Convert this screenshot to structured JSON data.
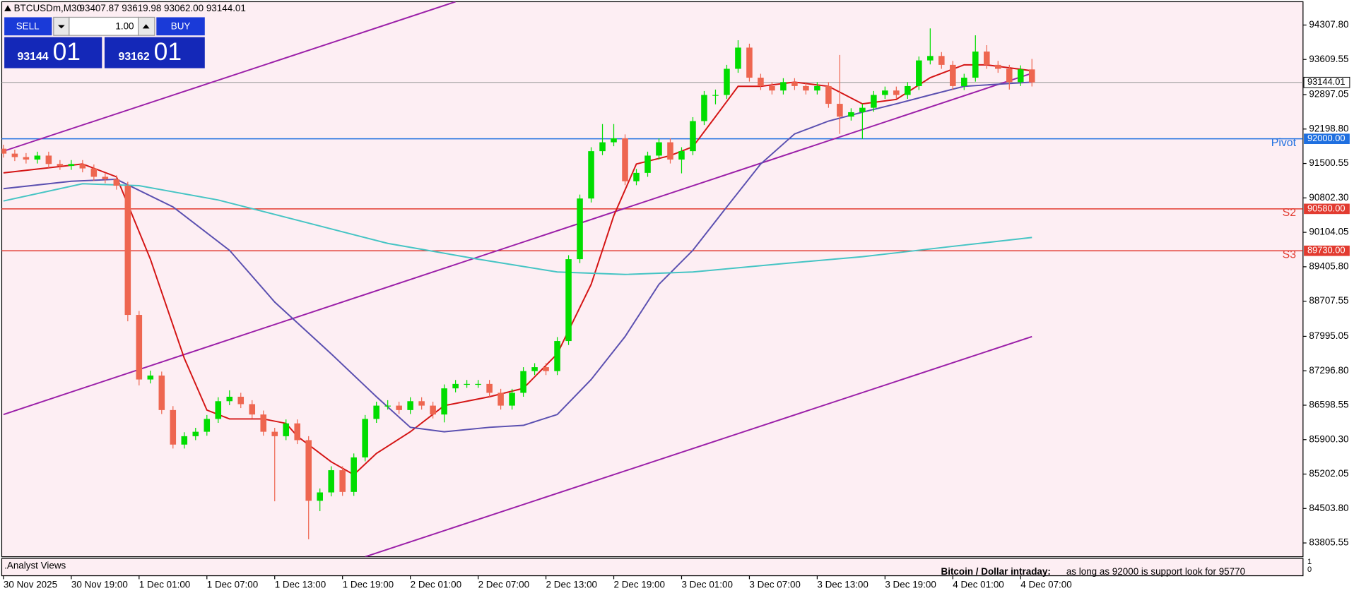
{
  "chart_data": {
    "type": "candlestick",
    "title": "BTCUSDm,M30",
    "ohlc_text": "93407.87 93619.98 93062.00 93144.01",
    "up_color": "#00dd00",
    "down_color": "#ee6650",
    "background": "#fdeef3",
    "ylim": [
      83525.5,
      94815.4
    ],
    "yticks": [
      {
        "value": 94307.8,
        "label": "94307.80"
      },
      {
        "value": 93609.55,
        "label": "93609.55"
      },
      {
        "value": 92897.05,
        "label": "92897.05"
      },
      {
        "value": 92198.8,
        "label": "92198.80"
      },
      {
        "value": 91500.55,
        "label": "91500.55"
      },
      {
        "value": 90802.3,
        "label": "90802.30"
      },
      {
        "value": 90104.05,
        "label": "90104.05"
      },
      {
        "value": 89405.8,
        "label": "89405.80"
      },
      {
        "value": 88707.55,
        "label": "88707.55"
      },
      {
        "value": 87995.05,
        "label": "87995.05"
      },
      {
        "value": 87296.8,
        "label": "87296.80"
      },
      {
        "value": 86598.55,
        "label": "86598.55"
      },
      {
        "value": 85900.3,
        "label": "85900.30"
      },
      {
        "value": 85202.05,
        "label": "85202.05"
      },
      {
        "value": 84503.8,
        "label": "84503.80"
      },
      {
        "value": 83805.55,
        "label": "83805.55"
      }
    ],
    "xticks": [
      {
        "value": 0,
        "label": "30 Nov 2025"
      },
      {
        "value": 6,
        "label": "30 Nov 19:00"
      },
      {
        "value": 12,
        "label": "1 Dec 01:00"
      },
      {
        "value": 18,
        "label": "1 Dec 07:00"
      },
      {
        "value": 24,
        "label": "1 Dec 13:00"
      },
      {
        "value": 30,
        "label": "1 Dec 19:00"
      },
      {
        "value": 36,
        "label": "2 Dec 01:00"
      },
      {
        "value": 42,
        "label": "2 Dec 07:00"
      },
      {
        "value": 48,
        "label": "2 Dec 13:00"
      },
      {
        "value": 54,
        "label": "2 Dec 19:00"
      },
      {
        "value": 60,
        "label": "3 Dec 01:00"
      },
      {
        "value": 66,
        "label": "3 Dec 07:00"
      },
      {
        "value": 72,
        "label": "3 Dec 13:00"
      },
      {
        "value": 78,
        "label": "3 Dec 19:00"
      },
      {
        "value": 84,
        "label": "4 Dec 01:00"
      },
      {
        "value": 90,
        "label": "4 Dec 07:00"
      }
    ],
    "open": [
      91800,
      91700,
      91630,
      91580,
      91660,
      91490,
      91450,
      91490,
      91400,
      91230,
      91180,
      91050,
      88430,
      87120,
      87200,
      86500,
      85800,
      85970,
      86060,
      86320,
      86680,
      86770,
      86620,
      86410,
      86060,
      85970,
      86230,
      85890,
      84660,
      84830,
      85280,
      84840,
      85540,
      86320,
      86590,
      86590,
      86500,
      86680,
      86590,
      86410,
      86940,
      87030,
      87030,
      87030,
      86850,
      86590,
      86850,
      87290,
      87370,
      87290,
      87900,
      89560,
      90790,
      91750,
      91930,
      92010,
      91140,
      91310,
      91660,
      91930,
      91580,
      91750,
      92360,
      92890,
      92890,
      93420,
      93850,
      93240,
      93070,
      92980,
      93150,
      93070,
      92980,
      93070,
      92710,
      92450,
      92540,
      92630,
      92890,
      92980,
      92890,
      93070,
      93590,
      93680,
      93500,
      93070,
      93240,
      93770,
      93500,
      93420,
      93150,
      93407.87
    ],
    "high": [
      91880,
      91780,
      91710,
      91740,
      91740,
      91570,
      91570,
      91570,
      91480,
      91310,
      91260,
      91130,
      88510,
      87300,
      87280,
      86580,
      86050,
      86140,
      86400,
      86760,
      86900,
      86850,
      86700,
      86490,
      86140,
      86310,
      86310,
      85970,
      84910,
      85360,
      85360,
      85620,
      86400,
      86670,
      86700,
      86670,
      86760,
      86760,
      86670,
      87020,
      87110,
      87110,
      87110,
      87110,
      86930,
      86930,
      87370,
      87450,
      87450,
      87980,
      89640,
      90870,
      91830,
      92300,
      92300,
      92090,
      91390,
      91740,
      92010,
      92010,
      91830,
      92440,
      92970,
      93000,
      93500,
      94000,
      93930,
      93320,
      93150,
      93230,
      93230,
      93150,
      93150,
      93150,
      93700,
      92620,
      92710,
      92970,
      93060,
      93060,
      93150,
      93670,
      94240,
      93760,
      93580,
      93320,
      94100,
      93900,
      93580,
      93500,
      93490,
      93619.98
    ],
    "low": [
      91620,
      91550,
      91500,
      91500,
      91410,
      91370,
      91370,
      91320,
      91150,
      91100,
      90970,
      88300,
      87000,
      87040,
      86420,
      85720,
      85720,
      85890,
      85980,
      86240,
      86600,
      86540,
      86330,
      85980,
      84650,
      85890,
      85810,
      83880,
      84450,
      84750,
      84760,
      84760,
      85460,
      86240,
      86510,
      86420,
      86420,
      86510,
      86330,
      86250,
      86860,
      86950,
      86950,
      86770,
      86510,
      86510,
      86770,
      87210,
      87210,
      87210,
      87820,
      89480,
      90710,
      91670,
      91850,
      91060,
      91060,
      91230,
      91580,
      91500,
      91300,
      91670,
      92280,
      92700,
      92810,
      93340,
      93160,
      92990,
      92900,
      92900,
      92990,
      92900,
      92900,
      92630,
      92100,
      92370,
      92000,
      92550,
      92810,
      92810,
      92810,
      92990,
      93510,
      93420,
      92990,
      92990,
      93160,
      93420,
      93340,
      93000,
      93070,
      93062
    ],
    "close": [
      91700,
      91630,
      91580,
      91660,
      91490,
      91450,
      91490,
      91400,
      91230,
      91180,
      91050,
      88430,
      87120,
      87200,
      86500,
      85800,
      85970,
      86060,
      86320,
      86680,
      86770,
      86620,
      86410,
      86060,
      85970,
      86230,
      85890,
      84660,
      84830,
      85280,
      84840,
      85540,
      86320,
      86590,
      86590,
      86500,
      86680,
      86590,
      86410,
      86940,
      87030,
      87030,
      87030,
      86850,
      86590,
      86850,
      87290,
      87370,
      87290,
      87900,
      89560,
      90790,
      91750,
      91930,
      92010,
      91140,
      91310,
      91660,
      91930,
      91580,
      91750,
      92360,
      92890,
      92890,
      93420,
      93850,
      93240,
      93070,
      92980,
      93150,
      93070,
      92980,
      93070,
      92710,
      92450,
      92540,
      92630,
      92890,
      92980,
      92890,
      93070,
      93590,
      93680,
      93500,
      93070,
      93240,
      93770,
      93500,
      93420,
      93150,
      93410,
      93144.01
    ],
    "lines": [
      {
        "color": "#d41414",
        "x": [
          0,
          7,
          10,
          13,
          16,
          18,
          20,
          23,
          25,
          26,
          29,
          31,
          33,
          36,
          39,
          43,
          46,
          49,
          52,
          54,
          56,
          59,
          61,
          63,
          65,
          67,
          70,
          73,
          76,
          79,
          82,
          85,
          87,
          91
        ],
        "values": [
          91310,
          91490,
          91230,
          89560,
          87550,
          86500,
          86320,
          86320,
          86230,
          85970,
          85450,
          85190,
          85620,
          86060,
          86590,
          86770,
          86940,
          87640,
          89050,
          90440,
          91490,
          91660,
          91840,
          92450,
          93065,
          93065,
          93150,
          93065,
          92710,
          92800,
          93240,
          93500,
          93500,
          93380
        ]
      },
      {
        "color": "#5a4fb0",
        "x": [
          0,
          6,
          10,
          15,
          20,
          24,
          29,
          33,
          36,
          39,
          43,
          46,
          49,
          52,
          55,
          58,
          61,
          64,
          67,
          70,
          73,
          76,
          79,
          82,
          85,
          91
        ],
        "values": [
          90990,
          91140,
          91180,
          90620,
          89740,
          88690,
          87640,
          86770,
          86150,
          86060,
          86150,
          86190,
          86410,
          87120,
          87990,
          89050,
          89740,
          90620,
          91490,
          92100,
          92360,
          92540,
          92710,
          92890,
          93065,
          93150
        ]
      },
      {
        "color": "#45c4c4",
        "x": [
          0,
          7,
          12,
          19,
          26,
          34,
          42,
          49,
          55,
          61,
          69,
          76,
          84,
          91
        ],
        "values": [
          90740,
          91090,
          91050,
          90760,
          90350,
          89880,
          89560,
          89300,
          89250,
          89300,
          89470,
          89610,
          89820,
          90000
        ]
      }
    ],
    "trendlines": [
      {
        "color": "#9b1fa8",
        "x": [
          0,
          40
        ],
        "values": [
          91750,
          94780
        ]
      },
      {
        "color": "#9b1fa8",
        "x": [
          0,
          91
        ],
        "values": [
          86410,
          93330
        ]
      },
      {
        "color": "#9b1fa8",
        "x": [
          32,
          91
        ],
        "values": [
          83525,
          87990
        ]
      }
    ],
    "levels": [
      {
        "name": "Pivot",
        "value": 92000,
        "label": "92000.00",
        "color": "#1e6fe0"
      },
      {
        "name": "S2",
        "value": 90580,
        "label": "90580.00",
        "color": "#e23b30"
      },
      {
        "name": "S3",
        "value": 89730,
        "label": "89730.00",
        "color": "#e23b30"
      }
    ],
    "price_line": {
      "value": 93144.01,
      "label": "93144.01",
      "color": "#9a9a9a"
    }
  },
  "trade_panel": {
    "sell": "SELL",
    "buy": "BUY",
    "lot": "1.00",
    "sell_price": {
      "main": "93144",
      "big": "01"
    },
    "buy_price": {
      "main": "93162",
      "big": "01"
    }
  },
  "indicator": {
    "name": ".Analyst Views",
    "yticks": [
      1,
      0
    ],
    "text_bold": "Bitcoin / Dollar intraday:",
    "text": "as long as 92000 is support look for 95770"
  }
}
